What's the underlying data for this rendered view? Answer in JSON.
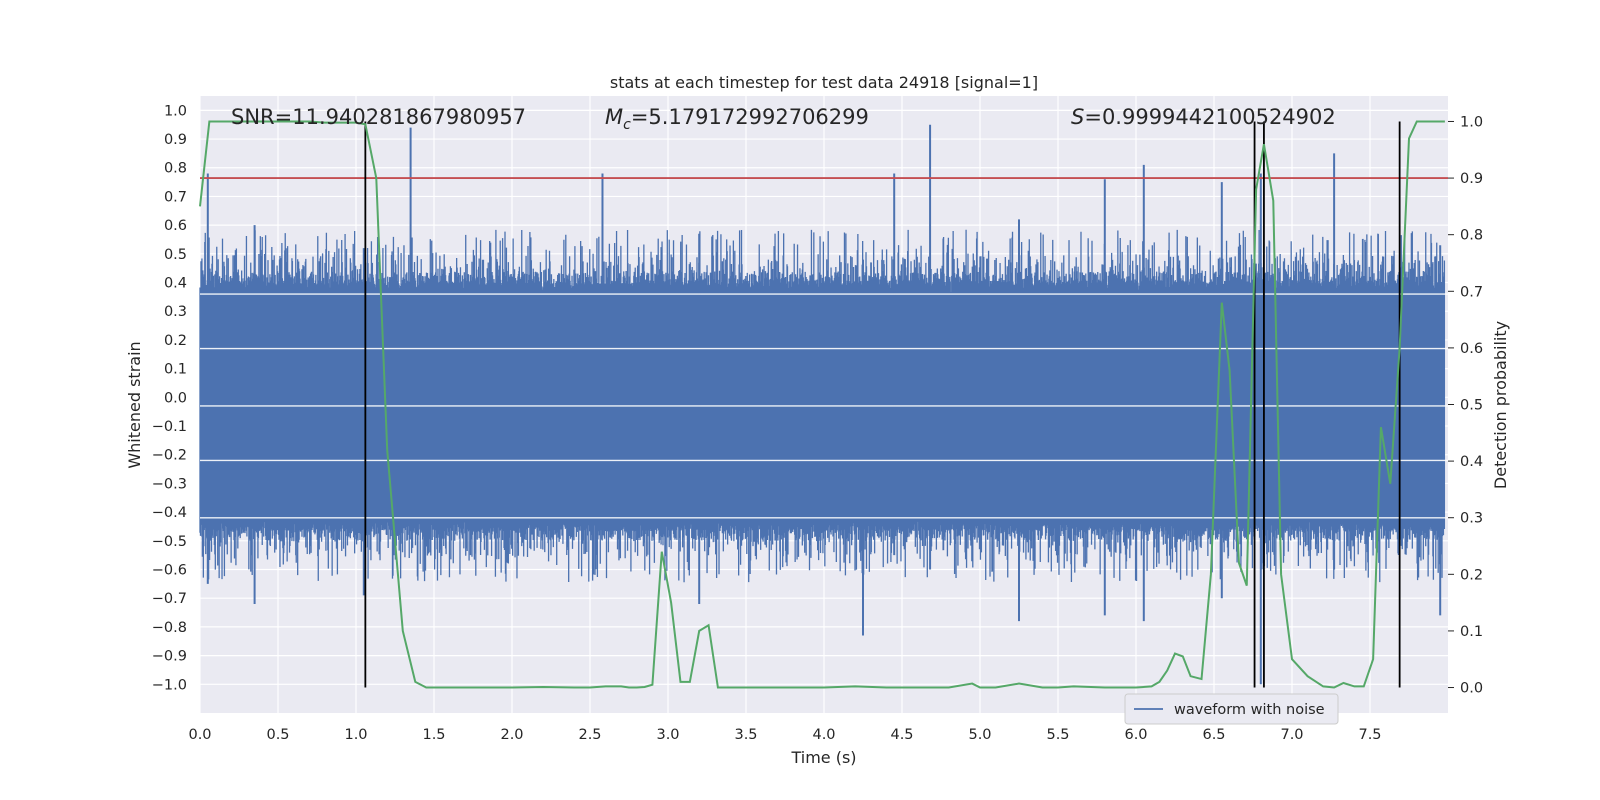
{
  "chart_data": {
    "type": "line",
    "title": "stats at each timestep for test data 24918 [signal=1]",
    "xlabel": "Time (s)",
    "ylabel": "Whitened strain",
    "y2label": "Detection probability",
    "xlim": [
      0.0,
      8.0
    ],
    "ylim": [
      -1.1,
      1.05
    ],
    "y2lim": [
      -0.045,
      1.045
    ],
    "xticks": [
      "0.0",
      "0.5",
      "1.0",
      "1.5",
      "2.0",
      "2.5",
      "3.0",
      "3.5",
      "4.0",
      "4.5",
      "5.0",
      "5.5",
      "6.0",
      "6.5",
      "7.0",
      "7.5"
    ],
    "yticks": [
      "1.0",
      "0.9",
      "0.8",
      "0.7",
      "0.6",
      "0.5",
      "0.4",
      "0.3",
      "0.2",
      "0.1",
      "0.0",
      "-0.1",
      "-0.2",
      "-0.3",
      "-0.4",
      "-0.5",
      "-0.6",
      "-0.7",
      "-0.8",
      "-0.9",
      "-1.0"
    ],
    "y2ticks": [
      "1.0",
      "0.9",
      "0.8",
      "0.7",
      "0.6",
      "0.5",
      "0.4",
      "0.3",
      "0.2",
      "0.1",
      "0.0"
    ],
    "grid": true,
    "legend_position": "lower-right",
    "annotations": {
      "snr": "SNR=11.940281867980957",
      "mc_symbol": "M",
      "mc_subscript": "c",
      "mc_value": "=5.179172992706299",
      "s_symbol": "S",
      "s_value": "=0.9999442100524902"
    },
    "colors": {
      "background": "#eaeaf2",
      "grid": "#ffffff",
      "waveform": "#4c72b0",
      "probability": "#55a868",
      "threshold": "#c44e52",
      "markers": "#000000"
    },
    "threshold": 0.9,
    "vertical_markers": [
      1.06,
      6.76,
      6.82,
      7.69
    ],
    "series": [
      {
        "name": "waveform with noise",
        "kind": "noise-band",
        "core_range": [
          -0.42,
          0.36
        ],
        "spikes": [
          [
            0.05,
            0.78,
            -0.65
          ],
          [
            0.35,
            0.6,
            -0.72
          ],
          [
            1.05,
            0.52,
            -0.69
          ],
          [
            1.35,
            0.94,
            -0.45
          ],
          [
            2.58,
            0.78,
            -0.48
          ],
          [
            3.2,
            0.57,
            -0.72
          ],
          [
            4.25,
            0.48,
            -0.83
          ],
          [
            4.45,
            0.78,
            -0.55
          ],
          [
            4.68,
            0.95,
            -0.6
          ],
          [
            5.25,
            0.62,
            -0.78
          ],
          [
            5.8,
            0.76,
            -0.76
          ],
          [
            6.05,
            0.81,
            -0.78
          ],
          [
            6.55,
            0.75,
            -0.7
          ],
          [
            6.8,
            0.78,
            -1.0
          ],
          [
            7.27,
            0.85,
            -0.6
          ],
          [
            7.95,
            0.53,
            -0.76
          ]
        ]
      },
      {
        "name": "detection probability",
        "axis": "right",
        "x": [
          0.0,
          0.06,
          0.12,
          0.2,
          0.3,
          0.4,
          0.5,
          0.6,
          0.7,
          0.8,
          0.9,
          1.0,
          1.06,
          1.13,
          1.2,
          1.3,
          1.38,
          1.45,
          1.6,
          1.8,
          2.0,
          2.2,
          2.4,
          2.5,
          2.6,
          2.7,
          2.75,
          2.8,
          2.85,
          2.9,
          2.96,
          3.02,
          3.08,
          3.14,
          3.2,
          3.26,
          3.32,
          3.4,
          3.6,
          3.8,
          4.0,
          4.2,
          4.4,
          4.6,
          4.8,
          4.95,
          5.0,
          5.1,
          5.25,
          5.4,
          5.5,
          5.6,
          5.8,
          6.0,
          6.1,
          6.15,
          6.2,
          6.25,
          6.3,
          6.35,
          6.42,
          6.48,
          6.55,
          6.6,
          6.66,
          6.71,
          6.77,
          6.82,
          6.88,
          6.93,
          7.0,
          7.1,
          7.2,
          7.27,
          7.33,
          7.4,
          7.46,
          7.52,
          7.57,
          7.63,
          7.69,
          7.75,
          7.8,
          7.9,
          7.98
        ],
        "values": [
          0.85,
          1.0,
          1.0,
          1.0,
          1.0,
          1.0,
          1.0,
          1.0,
          1.0,
          0.998,
          0.998,
          0.998,
          0.995,
          0.9,
          0.42,
          0.1,
          0.01,
          0.0,
          0.0,
          0.0,
          0.0,
          0.001,
          0.0,
          0.0,
          0.002,
          0.002,
          0.0,
          0.0,
          0.001,
          0.005,
          0.24,
          0.15,
          0.01,
          0.01,
          0.1,
          0.11,
          0.0,
          0.0,
          0.0,
          0.0,
          0.0,
          0.002,
          0.0,
          0.0,
          0.0,
          0.007,
          0.0,
          0.0,
          0.007,
          0.0,
          0.0,
          0.002,
          0.0,
          0.0,
          0.002,
          0.01,
          0.03,
          0.06,
          0.055,
          0.02,
          0.015,
          0.2,
          0.68,
          0.56,
          0.22,
          0.18,
          0.88,
          0.96,
          0.86,
          0.2,
          0.05,
          0.02,
          0.002,
          0.0,
          0.008,
          0.002,
          0.002,
          0.05,
          0.46,
          0.36,
          0.6,
          0.97,
          1.0,
          1.0,
          1.0
        ]
      }
    ]
  }
}
